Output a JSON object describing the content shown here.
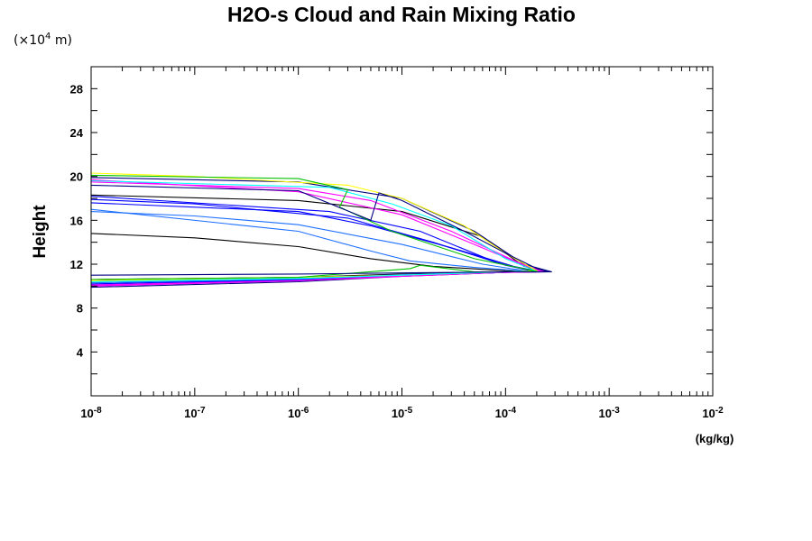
{
  "chart_data": {
    "type": "line",
    "title": "H2O-s Cloud and Rain Mixing Ratio",
    "y_scale_note": {
      "prefix": "(×10",
      "exponent": "4",
      "suffix": " m)"
    },
    "ylabel": "Height",
    "xlabel": "(kg/kg)",
    "x_scale": "log",
    "xlim": [
      1e-08,
      0.01
    ],
    "ylim": [
      0,
      30
    ],
    "x_ticks": [
      {
        "base": "10",
        "exp": "-8"
      },
      {
        "base": "10",
        "exp": "-7"
      },
      {
        "base": "10",
        "exp": "-6"
      },
      {
        "base": "10",
        "exp": "-5"
      },
      {
        "base": "10",
        "exp": "-4"
      },
      {
        "base": "10",
        "exp": "-3"
      },
      {
        "base": "10",
        "exp": "-2"
      }
    ],
    "y_ticks": [
      "4",
      "8",
      "12",
      "16",
      "20",
      "24",
      "28"
    ],
    "grid": false,
    "legend": "none",
    "series": [
      {
        "color": "#000000",
        "points": [
          [
            1e-08,
            10.6
          ],
          [
            1e-06,
            10.8
          ],
          [
            1e-05,
            11.1
          ],
          [
            0.0001,
            11.3
          ],
          [
            0.00025,
            11.3
          ],
          [
            0.00015,
            11.8
          ],
          [
            6e-05,
            14.5
          ],
          [
            1e-05,
            16.8
          ],
          [
            1e-06,
            17.8
          ],
          [
            1e-08,
            18.3
          ]
        ]
      },
      {
        "color": "#000000",
        "points": [
          [
            1e-08,
            14.8
          ],
          [
            1e-07,
            14.4
          ],
          [
            1e-06,
            13.6
          ],
          [
            5e-06,
            12.5
          ],
          [
            2e-05,
            11.8
          ],
          [
            0.0001,
            11.4
          ],
          [
            0.00025,
            11.3
          ]
        ]
      },
      {
        "color": "#000080",
        "points": [
          [
            1e-08,
            9.9
          ],
          [
            1e-06,
            10.4
          ],
          [
            1e-05,
            10.9
          ],
          [
            0.0001,
            11.25
          ],
          [
            0.00028,
            11.3
          ],
          [
            0.00015,
            12
          ],
          [
            5e-05,
            15
          ],
          [
            1e-05,
            18
          ],
          [
            1e-06,
            19.5
          ],
          [
            1e-08,
            19.9
          ]
        ]
      },
      {
        "color": "#0000ff",
        "points": [
          [
            1e-08,
            10.0
          ],
          [
            1e-06,
            10.5
          ],
          [
            1e-05,
            10.95
          ],
          [
            0.0001,
            11.25
          ],
          [
            0.00022,
            11.3
          ],
          [
            0.00012,
            11.8
          ],
          [
            3e-05,
            13.5
          ],
          [
            5e-06,
            15.5
          ],
          [
            1e-06,
            16.8
          ],
          [
            1e-08,
            17.6
          ]
        ]
      },
      {
        "color": "#0000ff",
        "points": [
          [
            1e-08,
            10.1
          ],
          [
            1e-06,
            10.55
          ],
          [
            1e-05,
            10.95
          ],
          [
            0.0001,
            11.25
          ],
          [
            0.0002,
            11.3
          ],
          [
            0.0001,
            11.9
          ],
          [
            2e-05,
            14.0
          ],
          [
            3e-06,
            16.2
          ],
          [
            1e-07,
            17.5
          ],
          [
            1e-08,
            17.9
          ]
        ]
      },
      {
        "color": "#0000ff",
        "points": [
          [
            1e-08,
            10.2
          ],
          [
            1e-06,
            10.6
          ],
          [
            1e-05,
            11.0
          ],
          [
            0.0001,
            11.3
          ],
          [
            0.00019,
            11.3
          ],
          [
            8e-05,
            12.2
          ],
          [
            1.5e-05,
            15.0
          ],
          [
            2e-06,
            16.8
          ],
          [
            1e-08,
            18.2
          ]
        ]
      },
      {
        "color": "#1e6fff",
        "points": [
          [
            1e-08,
            10.3
          ],
          [
            1e-06,
            10.65
          ],
          [
            1e-05,
            11.0
          ],
          [
            0.0001,
            11.3
          ],
          [
            0.00018,
            11.3
          ],
          [
            6e-05,
            12.0
          ],
          [
            1e-05,
            13.8
          ],
          [
            1e-06,
            15.6
          ],
          [
            1e-07,
            16.4
          ],
          [
            1e-08,
            16.8
          ]
        ]
      },
      {
        "color": "#1e6fff",
        "points": [
          [
            1e-08,
            10.4
          ],
          [
            1e-06,
            10.7
          ],
          [
            1e-05,
            11.05
          ],
          [
            0.0001,
            11.3
          ],
          [
            0.00017,
            11.35
          ],
          [
            5e-05,
            11.7
          ],
          [
            1.2e-05,
            12.3
          ],
          [
            5e-06,
            13.2
          ],
          [
            1e-06,
            15.0
          ],
          [
            1e-08,
            17.0
          ]
        ]
      },
      {
        "color": "#ff00ff",
        "points": [
          [
            1e-08,
            10.0
          ],
          [
            1e-06,
            10.5
          ],
          [
            1e-05,
            10.9
          ],
          [
            0.0001,
            11.25
          ],
          [
            0.00024,
            11.3
          ],
          [
            0.00015,
            11.9
          ],
          [
            5e-05,
            13.8
          ],
          [
            1e-05,
            16.5
          ],
          [
            1e-06,
            18.6
          ],
          [
            1e-08,
            19.7
          ]
        ]
      },
      {
        "color": "#ff00ff",
        "points": [
          [
            1e-08,
            10.1
          ],
          [
            1e-06,
            10.5
          ],
          [
            1e-05,
            10.95
          ],
          [
            0.0001,
            11.3
          ],
          [
            0.00022,
            11.3
          ],
          [
            0.00013,
            12.2
          ],
          [
            3e-05,
            15.0
          ],
          [
            5e-06,
            17.8
          ],
          [
            1e-06,
            18.9
          ],
          [
            1e-08,
            19.5
          ]
        ]
      },
      {
        "color": "#ffff00",
        "points": [
          [
            1e-08,
            10.5
          ],
          [
            1e-06,
            10.8
          ],
          [
            1e-05,
            11.0
          ],
          [
            0.0001,
            11.3
          ],
          [
            0.0002,
            11.4
          ],
          [
            0.0001,
            13.0
          ],
          [
            4e-05,
            15.5
          ],
          [
            1e-05,
            18.0
          ],
          [
            3e-06,
            19.2
          ],
          [
            1e-07,
            20.0
          ],
          [
            1e-08,
            20.3
          ]
        ]
      },
      {
        "color": "#00ffff",
        "points": [
          [
            1e-08,
            10.4
          ],
          [
            1e-06,
            10.7
          ],
          [
            1e-05,
            11.0
          ],
          [
            0.0001,
            11.3
          ],
          [
            0.0002,
            11.35
          ],
          [
            0.0001,
            12.5
          ],
          [
            3e-05,
            15.5
          ],
          [
            8e-06,
            17.5
          ],
          [
            2e-06,
            19.0
          ],
          [
            1e-08,
            19.6
          ]
        ]
      },
      {
        "color": "#00c000",
        "points": [
          [
            1e-08,
            10.6
          ],
          [
            1e-06,
            10.8
          ],
          [
            1.2e-05,
            11.6
          ],
          [
            1.5e-05,
            11.9
          ],
          [
            5e-05,
            11.3
          ],
          [
            0.0001,
            11.3
          ],
          [
            0.0002,
            11.35
          ],
          [
            5e-05,
            12.5
          ],
          [
            8e-06,
            15.0
          ],
          [
            2.5e-06,
            17.2
          ],
          [
            3e-06,
            18.8
          ],
          [
            1e-06,
            19.8
          ],
          [
            1e-08,
            20.1
          ]
        ]
      },
      {
        "color": "#000080",
        "points": [
          [
            1e-08,
            11.0
          ],
          [
            1e-06,
            11.1
          ],
          [
            1e-05,
            11.2
          ],
          [
            0.0001,
            11.3
          ],
          [
            0.00026,
            11.3
          ],
          [
            0.0002,
            11.6
          ],
          [
            0.0001,
            13.0
          ],
          [
            4e-05,
            15.0
          ],
          [
            1e-05,
            17.8
          ],
          [
            6e-06,
            18.5
          ],
          [
            5e-06,
            16.0
          ],
          [
            1e-06,
            18.7
          ],
          [
            1e-08,
            19.2
          ]
        ]
      }
    ]
  }
}
